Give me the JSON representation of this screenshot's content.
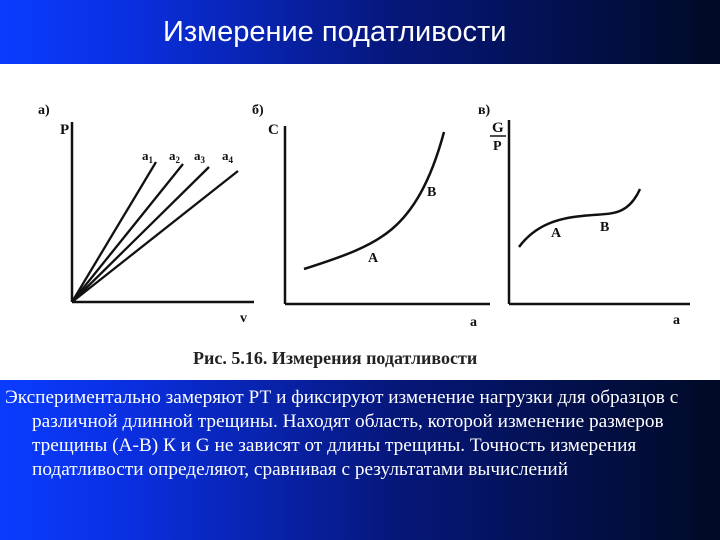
{
  "slide": {
    "title": "Измерение податливости",
    "body": "Экспериментально замеряют РТ и фиксируют изменение нагрузки для образцов с различной длинной трещины. Находят область, которой изменение размеров трещины (А-В) К и G не зависят от длины трещины. Точность измерения податливости определяют, сравнивая с результатами вычислений"
  },
  "figure": {
    "caption": "Рис. 5.16. Измерения податливости",
    "panels": [
      {
        "tag": "а)",
        "y_label": "P",
        "x_label": "v",
        "lines": [
          "a1",
          "a2",
          "a3",
          "a4"
        ],
        "line_labels": [
          {
            "base": "a",
            "sub": "1"
          },
          {
            "base": "a",
            "sub": "2"
          },
          {
            "base": "a",
            "sub": "3"
          },
          {
            "base": "a",
            "sub": "4"
          }
        ]
      },
      {
        "tag": "б)",
        "y_label": "C",
        "x_label": "a",
        "points": {
          "a": "A",
          "b": "B"
        }
      },
      {
        "tag": "в)",
        "y_label_num": "G",
        "y_label_den": "P",
        "x_label": "a",
        "points": {
          "a": "A",
          "b": "B"
        }
      }
    ]
  }
}
